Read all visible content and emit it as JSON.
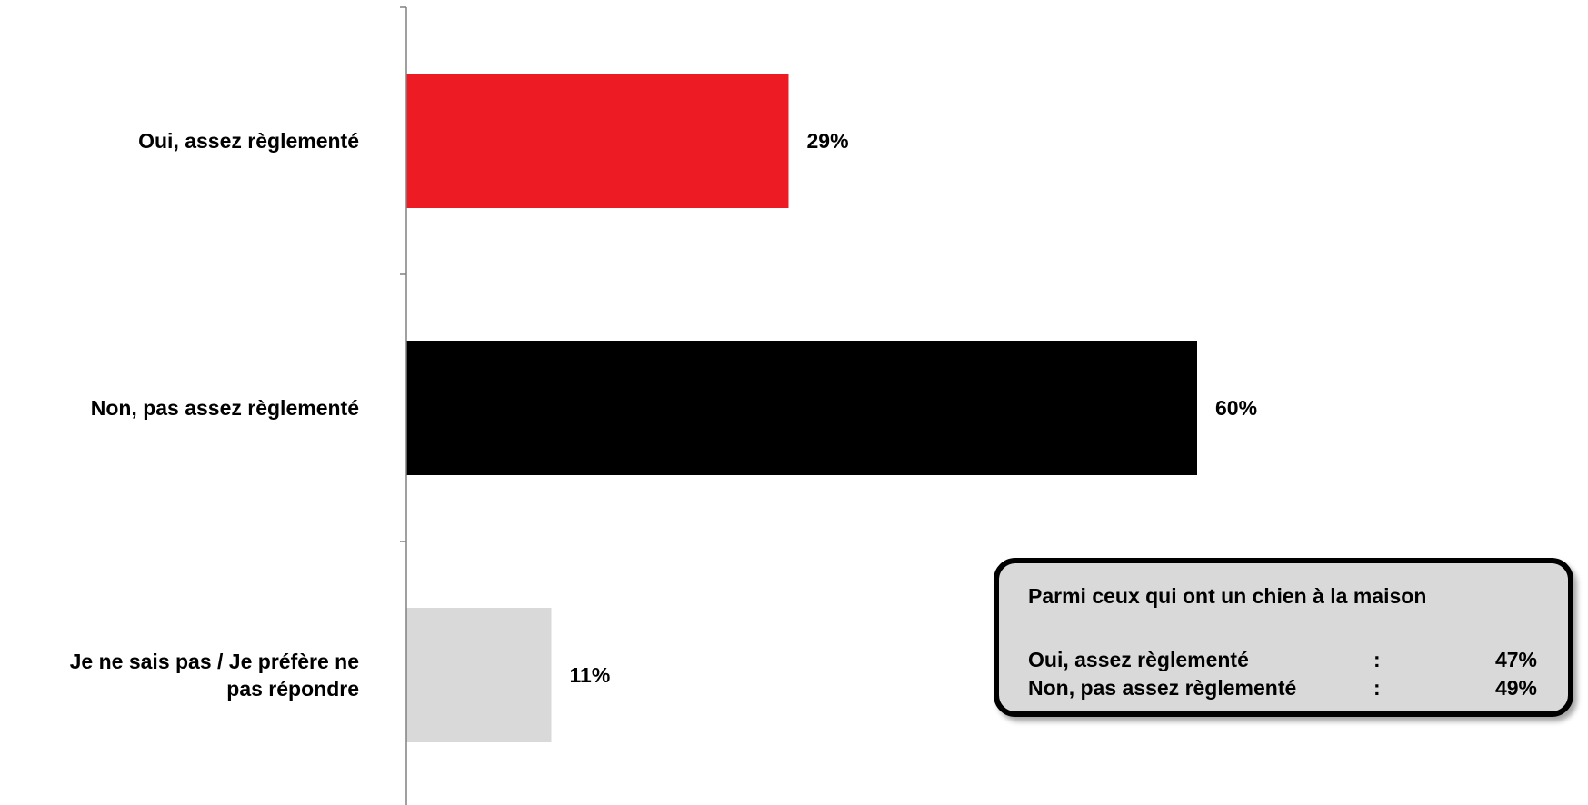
{
  "chart_data": {
    "type": "bar",
    "orientation": "horizontal",
    "categories": [
      "Oui, assez règlementé",
      "Non, pas assez règlementé",
      "Je ne sais pas / Je préfère ne pas répondre"
    ],
    "category_lines": [
      [
        "Oui, assez règlementé"
      ],
      [
        "Non, pas assez règlementé"
      ],
      [
        "Je ne sais pas / Je préfère ne",
        "pas répondre"
      ]
    ],
    "values": [
      29,
      60,
      11
    ],
    "value_labels": [
      "29%",
      "60%",
      "11%"
    ],
    "colors": [
      "#ed1c24",
      "#000000",
      "#d9d9d9"
    ],
    "xlim": [
      0,
      100
    ],
    "grid": false,
    "legend": "none"
  },
  "callout": {
    "title": "Parmi ceux qui ont un chien à la maison",
    "rows": [
      {
        "label": "Oui, assez règlementé",
        "separator": ":",
        "value": "47%"
      },
      {
        "label": "Non, pas assez règlementé",
        "separator": ":",
        "value": "49%"
      }
    ]
  }
}
